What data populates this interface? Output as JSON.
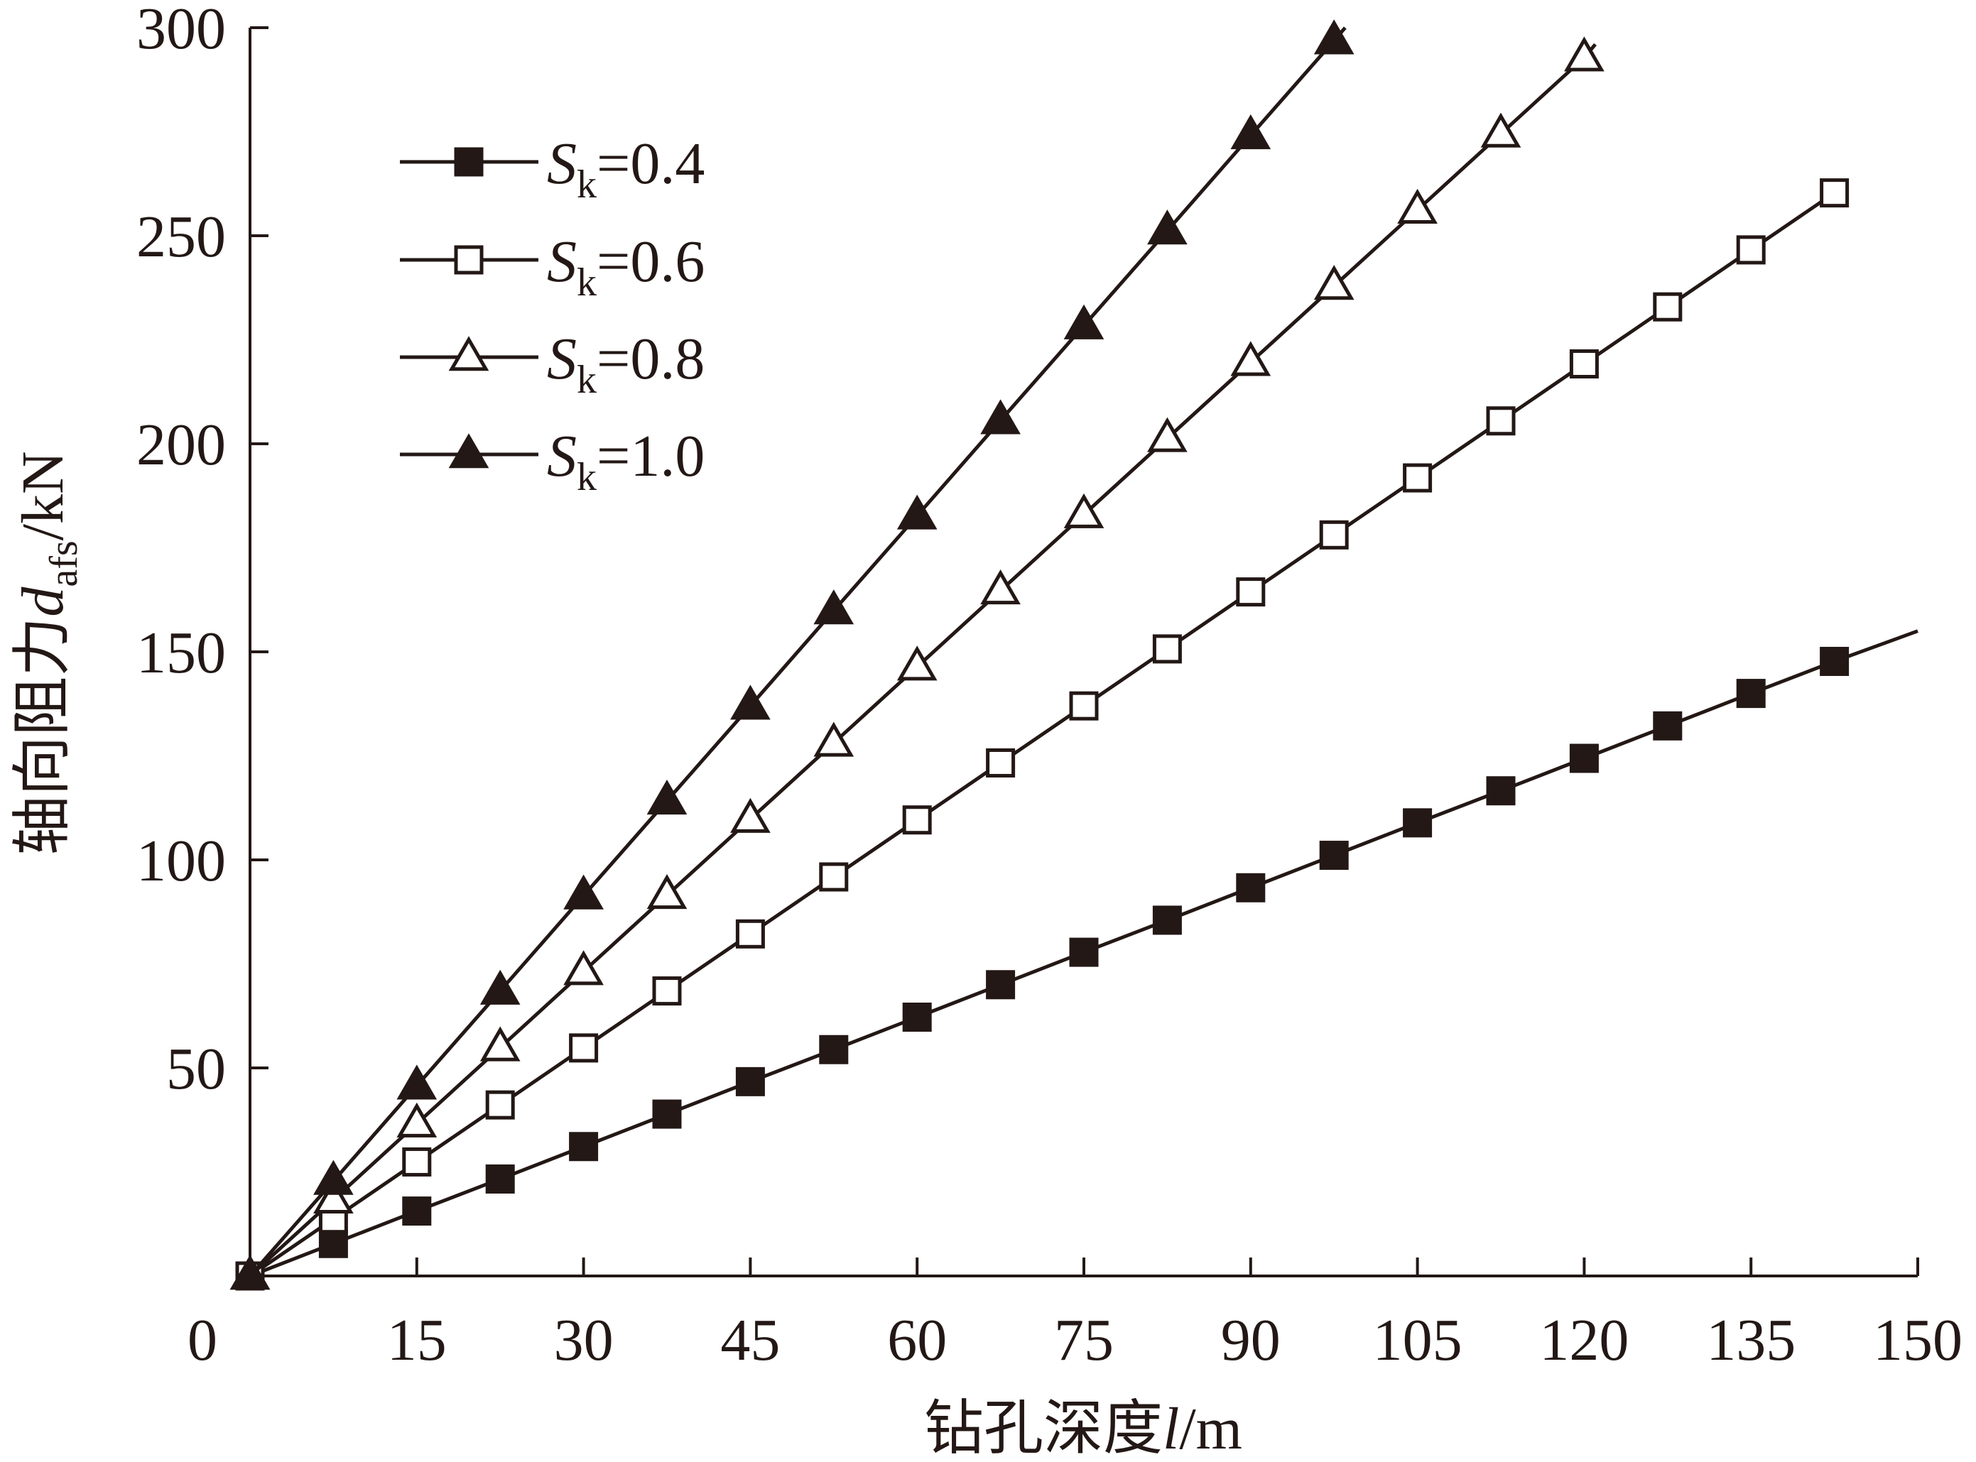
{
  "chart_data": {
    "type": "line",
    "xlabel": "钻孔深度l/m",
    "ylabel": "轴向阻力d_afs/kN",
    "xlabel_parts": {
      "text": "钻孔深度",
      "var": "l",
      "unit": "/m"
    },
    "ylabel_parts": {
      "text": "轴向阻力",
      "var": "d",
      "sub": "afs",
      "unit": "/kN"
    },
    "xlim": [
      0,
      150
    ],
    "ylim": [
      0,
      300
    ],
    "x_ticks": [
      0,
      15,
      30,
      45,
      60,
      75,
      90,
      105,
      120,
      135,
      150
    ],
    "y_ticks": [
      50,
      100,
      150,
      200,
      250,
      300
    ],
    "grid": false,
    "legend_position": "top-left",
    "series": [
      {
        "name": "Sk=0.4",
        "name_var": "S",
        "name_sub": "k",
        "name_value": "=0.4",
        "marker": "square-filled",
        "x": [
          0,
          7.5,
          15,
          22.5,
          30,
          37.5,
          45,
          52.5,
          60,
          67.5,
          75,
          82.5,
          90,
          97.5,
          105,
          112.5,
          120,
          127.5,
          135,
          142.5
        ],
        "values": [
          0,
          7.8,
          15.6,
          23.3,
          31.1,
          38.9,
          46.7,
          54.4,
          62.2,
          70.0,
          77.8,
          85.5,
          93.3,
          101.1,
          108.9,
          116.6,
          124.4,
          132.2,
          140.0,
          147.7
        ],
        "line_to": [
          150,
          155
        ]
      },
      {
        "name": "Sk=0.6",
        "name_var": "S",
        "name_sub": "k",
        "name_value": "=0.6",
        "marker": "square-open",
        "x": [
          0,
          7.5,
          15,
          22.5,
          30,
          37.5,
          45,
          52.5,
          60,
          67.5,
          75,
          82.5,
          90,
          97.5,
          105,
          112.5,
          120,
          127.5,
          135,
          142.5
        ],
        "values": [
          0,
          13.7,
          27.4,
          41.1,
          54.8,
          68.5,
          82.2,
          95.9,
          109.6,
          123.3,
          137.0,
          150.7,
          164.4,
          178.1,
          191.8,
          205.5,
          219.2,
          232.9,
          246.6,
          260.3
        ]
      },
      {
        "name": "Sk=0.8",
        "name_var": "S",
        "name_sub": "k",
        "name_value": "=0.8",
        "marker": "triangle-open",
        "x": [
          0,
          7.5,
          15,
          22.5,
          30,
          37.5,
          45,
          52.5,
          60,
          67.5,
          75,
          82.5,
          90,
          97.5,
          105,
          112.5,
          120
        ],
        "values": [
          0,
          18.3,
          36.6,
          54.9,
          73.2,
          91.5,
          109.8,
          128.1,
          146.4,
          164.7,
          183.0,
          201.3,
          219.6,
          237.9,
          256.2,
          274.5,
          292.8
        ],
        "line_to": [
          121,
          296
        ]
      },
      {
        "name": "Sk=1.0",
        "name_var": "S",
        "name_sub": "k",
        "name_value": "=1.0",
        "marker": "triangle-filled",
        "x": [
          0,
          7.5,
          15,
          22.5,
          30,
          37.5,
          45,
          52.5,
          60,
          67.5,
          75,
          82.5,
          90,
          97.5
        ],
        "values": [
          0,
          22.8,
          45.7,
          68.5,
          91.4,
          114.2,
          137.0,
          159.9,
          182.7,
          205.6,
          228.4,
          251.2,
          274.1,
          296.9
        ],
        "line_to": [
          98.5,
          300
        ]
      }
    ]
  }
}
